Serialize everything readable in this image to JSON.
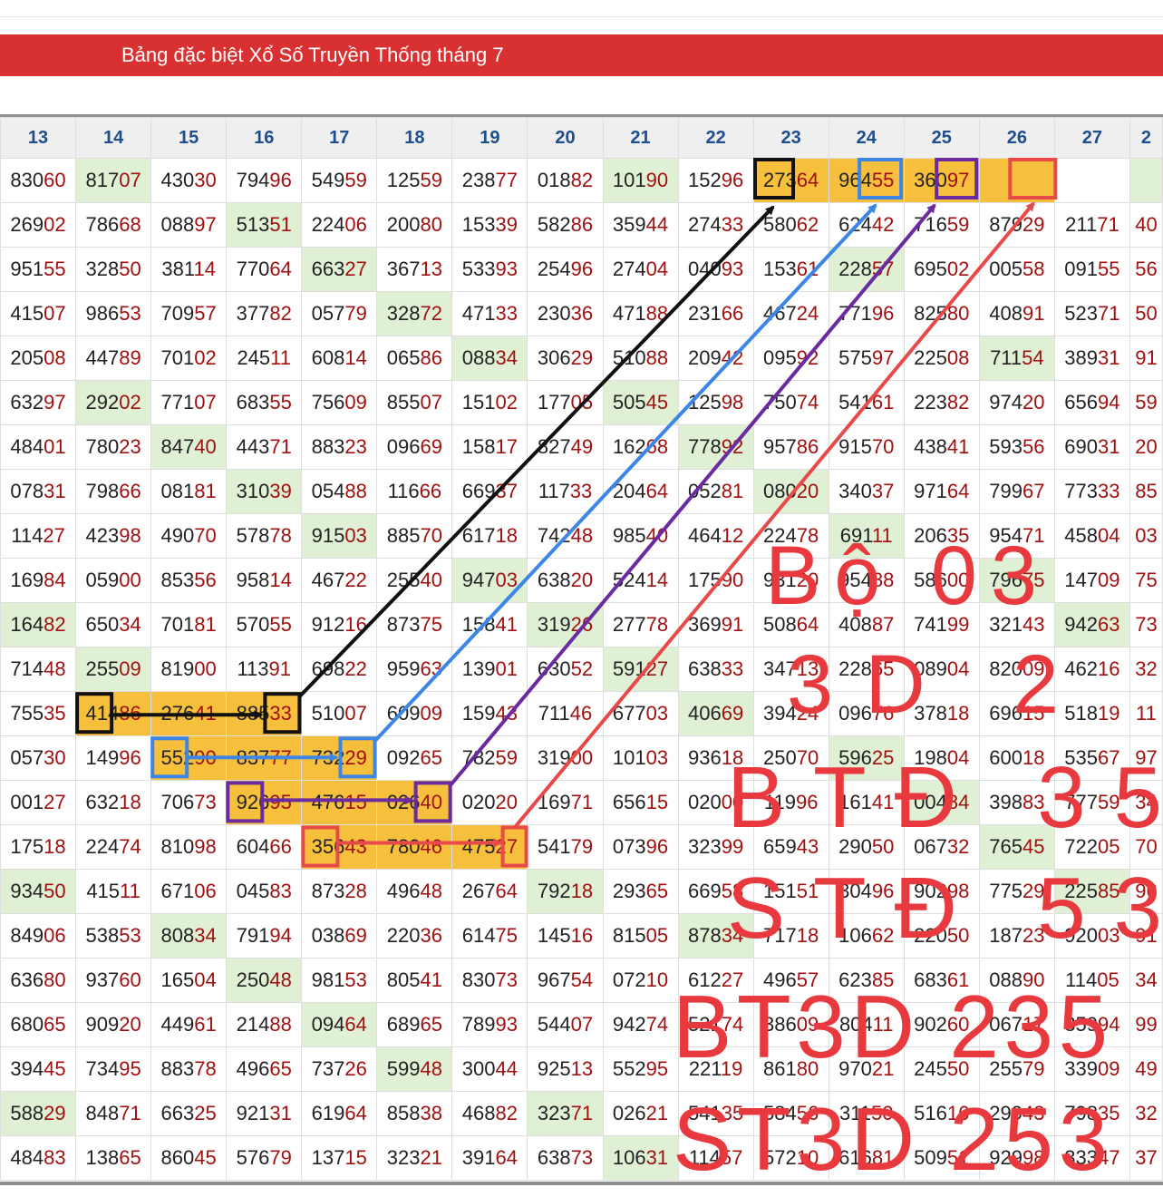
{
  "banner": {
    "title": "Bảng đặc biệt Xổ Số Truyền Thống tháng 7"
  },
  "table": {
    "days": [
      "13",
      "14",
      "15",
      "16",
      "17",
      "18",
      "19",
      "20",
      "21",
      "22",
      "23",
      "24",
      "25",
      "26",
      "27",
      "2"
    ],
    "rows": [
      [
        "83060",
        "81707",
        "43030",
        "79496",
        "54959",
        "12559",
        "23877",
        "01882",
        "10190",
        "15296",
        "27364",
        "96455",
        "36097",
        "",
        "",
        ""
      ],
      [
        "26902",
        "78668",
        "08897",
        "51351",
        "22406",
        "20080",
        "15339",
        "58286",
        "35944",
        "27433",
        "58062",
        "62442",
        "71659",
        "87929",
        "21171",
        "40"
      ],
      [
        "95155",
        "32850",
        "38114",
        "77064",
        "66327",
        "36713",
        "53393",
        "25496",
        "27404",
        "04093",
        "15361",
        "22857",
        "69502",
        "00558",
        "09155",
        "56"
      ],
      [
        "41507",
        "98653",
        "70957",
        "37782",
        "05779",
        "32872",
        "47133",
        "23036",
        "47188",
        "23166",
        "46724",
        "77196",
        "82580",
        "40891",
        "52371",
        "50"
      ],
      [
        "20508",
        "44789",
        "70102",
        "24511",
        "60814",
        "06586",
        "08834",
        "30629",
        "51088",
        "20942",
        "09592",
        "57597",
        "22508",
        "71154",
        "38931",
        "91"
      ],
      [
        "63297",
        "29202",
        "77107",
        "68355",
        "75609",
        "85507",
        "15102",
        "17705",
        "50545",
        "12598",
        "75074",
        "54161",
        "22382",
        "97420",
        "65694",
        "59"
      ],
      [
        "48401",
        "78023",
        "84740",
        "44371",
        "88323",
        "09669",
        "15817",
        "82749",
        "16268",
        "77892",
        "95786",
        "91570",
        "43841",
        "59356",
        "69031",
        "20"
      ],
      [
        "07831",
        "79866",
        "08181",
        "31039",
        "05488",
        "11666",
        "66937",
        "11733",
        "20464",
        "05281",
        "08020",
        "34037",
        "97164",
        "79967",
        "77333",
        "85"
      ],
      [
        "11427",
        "42398",
        "49070",
        "57878",
        "91503",
        "88570",
        "61718",
        "74248",
        "98540",
        "46412",
        "22478",
        "69111",
        "20635",
        "95471",
        "45804",
        "03"
      ],
      [
        "16984",
        "05900",
        "85356",
        "95814",
        "46722",
        "25540",
        "94703",
        "63820",
        "52414",
        "17590",
        "93120",
        "95488",
        "58600",
        "79675",
        "14709",
        "75"
      ],
      [
        "16482",
        "65034",
        "70181",
        "57055",
        "91216",
        "87375",
        "15841",
        "31926",
        "27778",
        "36991",
        "50864",
        "40887",
        "74199",
        "32143",
        "94263",
        "73"
      ],
      [
        "71448",
        "25509",
        "81900",
        "11391",
        "69822",
        "95963",
        "13901",
        "63052",
        "59127",
        "63833",
        "34713",
        "22865",
        "08904",
        "82009",
        "46216",
        "32"
      ],
      [
        "75535",
        "41486",
        "27641",
        "88533",
        "51007",
        "60909",
        "15943",
        "71146",
        "67703",
        "40669",
        "39424",
        "09676",
        "37818",
        "69615",
        "51819",
        "11"
      ],
      [
        "05730",
        "14996",
        "55290",
        "83777",
        "73229",
        "09265",
        "78259",
        "31900",
        "10103",
        "93618",
        "25070",
        "59625",
        "19804",
        "60018",
        "53567",
        "97"
      ],
      [
        "00127",
        "63218",
        "70673",
        "92695",
        "47615",
        "02640",
        "02020",
        "16971",
        "65615",
        "02000",
        "11996",
        "16141",
        "00484",
        "39883",
        "77759",
        "34"
      ],
      [
        "17518",
        "22474",
        "81098",
        "60466",
        "35643",
        "78046",
        "47527",
        "54179",
        "07396",
        "32399",
        "65943",
        "29050",
        "06732",
        "76545",
        "72205",
        "70"
      ],
      [
        "93450",
        "41511",
        "67106",
        "04583",
        "87328",
        "49648",
        "26764",
        "79218",
        "29365",
        "66958",
        "15151",
        "30496",
        "90298",
        "77529",
        "22585",
        "96"
      ],
      [
        "84906",
        "53853",
        "80834",
        "79194",
        "03869",
        "22036",
        "61475",
        "14516",
        "81505",
        "87834",
        "71718",
        "10662",
        "22050",
        "18723",
        "92003",
        "91"
      ],
      [
        "63680",
        "93760",
        "16504",
        "25048",
        "98153",
        "80541",
        "83073",
        "96754",
        "07210",
        "61227",
        "49657",
        "62385",
        "68361",
        "08890",
        "11405",
        "34"
      ],
      [
        "68065",
        "90920",
        "44961",
        "21488",
        "09464",
        "68965",
        "78993",
        "54407",
        "94274",
        "52174",
        "38609",
        "80411",
        "90260",
        "06717",
        "85994",
        "99"
      ],
      [
        "39445",
        "73495",
        "88378",
        "49665",
        "73726",
        "59948",
        "30044",
        "92513",
        "55295",
        "22119",
        "86180",
        "97021",
        "24550",
        "25579",
        "33909",
        "49"
      ],
      [
        "58829",
        "84871",
        "66325",
        "92131",
        "61964",
        "85838",
        "46882",
        "32371",
        "02621",
        "54135",
        "58456",
        "31150",
        "51616",
        "29943",
        "79835",
        "32"
      ],
      [
        "48483",
        "13865",
        "86045",
        "57679",
        "13715",
        "32321",
        "39164",
        "63873",
        "10631",
        "11457",
        "57210",
        "61681",
        "50951",
        "92998",
        "33347",
        "37"
      ]
    ]
  },
  "annotation": {
    "lines": [
      "Bộ 03",
      "3D 2",
      "BTĐ 35",
      "STĐ 53",
      "BT3D 235",
      "ST3D 253"
    ],
    "text_color": "#e8393f",
    "arrow_colors": [
      "#111111",
      "#3d86e6",
      "#6a2aa0",
      "#e84a4a"
    ]
  }
}
